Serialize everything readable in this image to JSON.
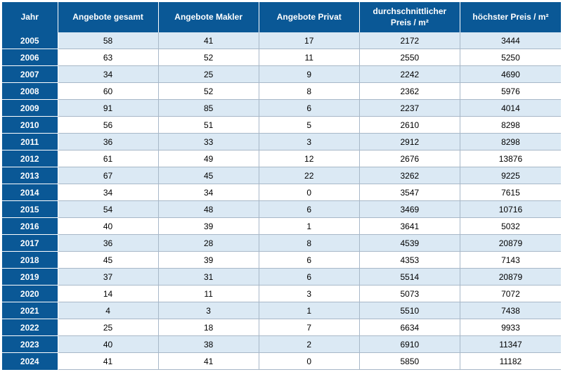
{
  "table": {
    "colors": {
      "header_bg": "#0a5896",
      "header_fg": "#ffffff",
      "row_odd_bg": "#dbe9f4",
      "row_even_bg": "#ffffff",
      "grid": "#a8b8c8"
    },
    "columns": [
      {
        "label": "Jahr"
      },
      {
        "label": "Angebote gesamt"
      },
      {
        "label": "Angebote Makler"
      },
      {
        "label": "Angebote Privat"
      },
      {
        "label": "durchschnittlicher Preis / m²"
      },
      {
        "label": "höchster Preis / m²"
      }
    ],
    "rows": [
      [
        "2005",
        "58",
        "41",
        "17",
        "2172",
        "3444"
      ],
      [
        "2006",
        "63",
        "52",
        "11",
        "2550",
        "5250"
      ],
      [
        "2007",
        "34",
        "25",
        "9",
        "2242",
        "4690"
      ],
      [
        "2008",
        "60",
        "52",
        "8",
        "2362",
        "5976"
      ],
      [
        "2009",
        "91",
        "85",
        "6",
        "2237",
        "4014"
      ],
      [
        "2010",
        "56",
        "51",
        "5",
        "2610",
        "8298"
      ],
      [
        "2011",
        "36",
        "33",
        "3",
        "2912",
        "8298"
      ],
      [
        "2012",
        "61",
        "49",
        "12",
        "2676",
        "13876"
      ],
      [
        "2013",
        "67",
        "45",
        "22",
        "3262",
        "9225"
      ],
      [
        "2014",
        "34",
        "34",
        "0",
        "3547",
        "7615"
      ],
      [
        "2015",
        "54",
        "48",
        "6",
        "3469",
        "10716"
      ],
      [
        "2016",
        "40",
        "39",
        "1",
        "3641",
        "5032"
      ],
      [
        "2017",
        "36",
        "28",
        "8",
        "4539",
        "20879"
      ],
      [
        "2018",
        "45",
        "39",
        "6",
        "4353",
        "7143"
      ],
      [
        "2019",
        "37",
        "31",
        "6",
        "5514",
        "20879"
      ],
      [
        "2020",
        "14",
        "11",
        "3",
        "5073",
        "7072"
      ],
      [
        "2021",
        "4",
        "3",
        "1",
        "5510",
        "7438"
      ],
      [
        "2022",
        "25",
        "18",
        "7",
        "6634",
        "9933"
      ],
      [
        "2023",
        "40",
        "38",
        "2",
        "6910",
        "11347"
      ],
      [
        "2024",
        "41",
        "41",
        "0",
        "5850",
        "11182"
      ]
    ]
  }
}
